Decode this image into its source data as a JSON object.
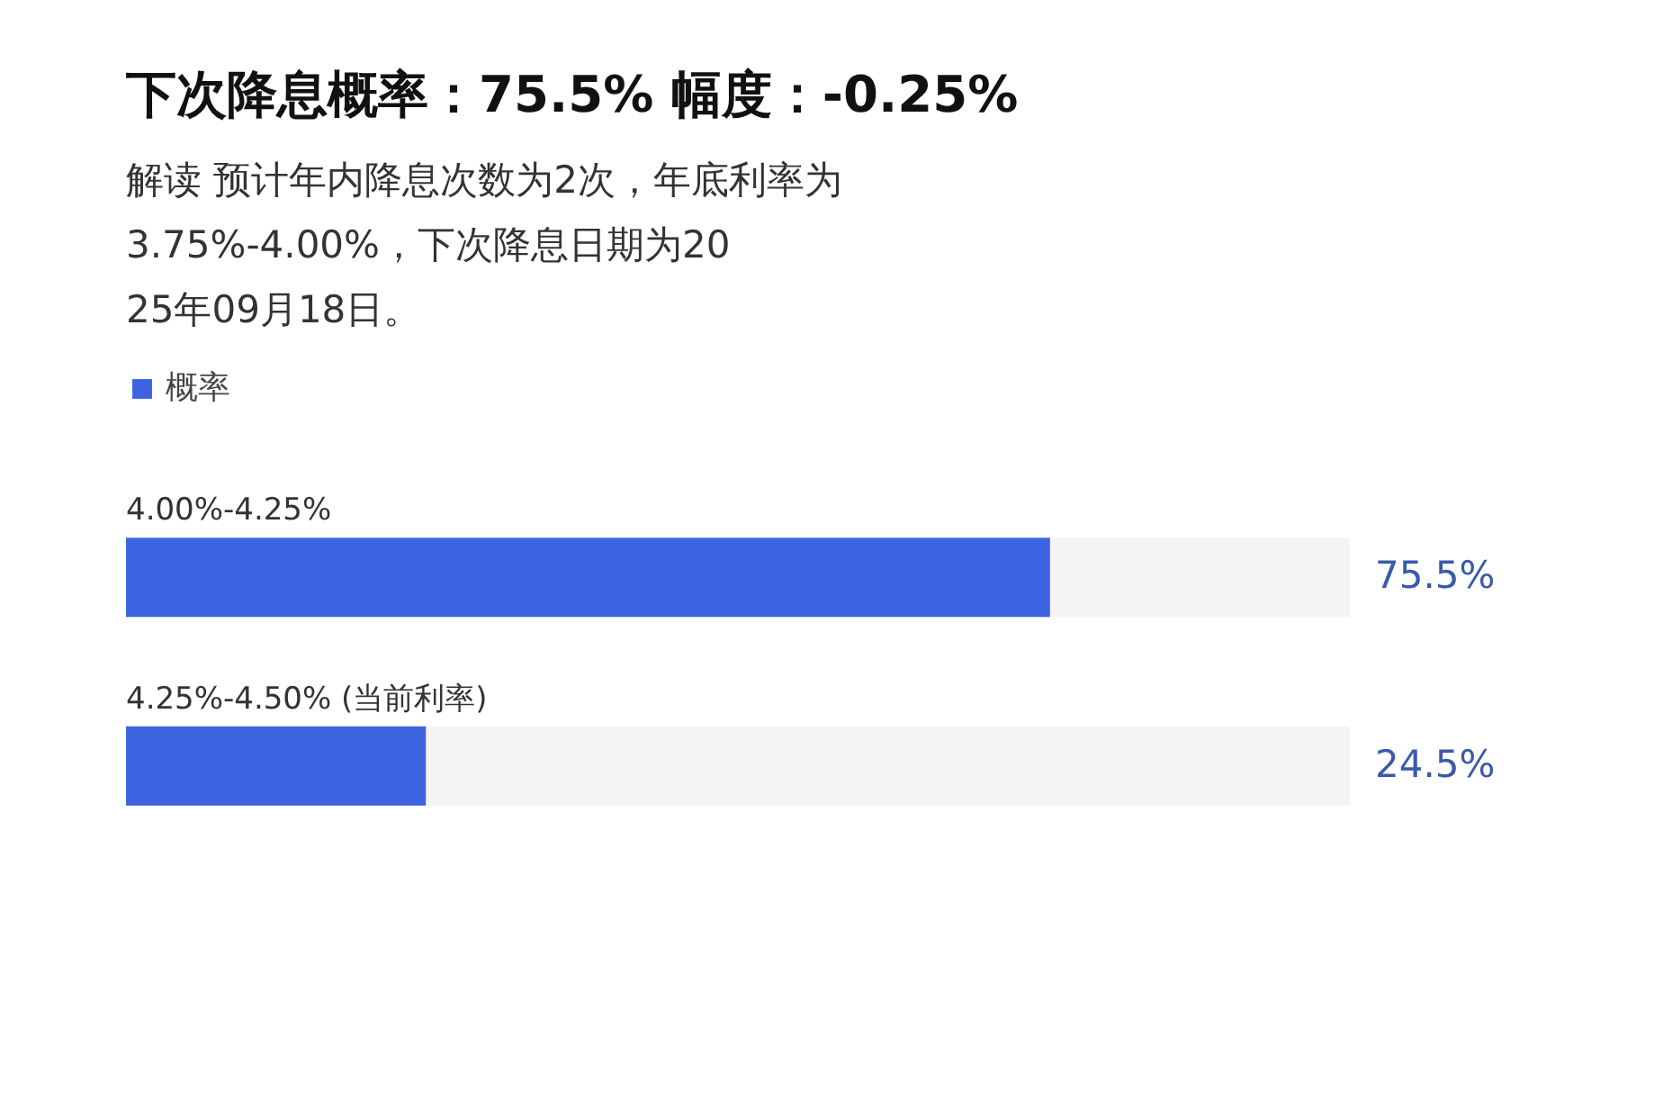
{
  "chart_data": {
    "type": "bar",
    "orientation": "horizontal",
    "title": "下次降息概率：75.5%    幅度：-0.25%",
    "annotations": [
      "解读",
      "预计年内降息次数为2次，年底利率为3.75%-4.00%，下次降息日期为2025年09月18日。"
    ],
    "categories": [
      "4.00%-4.25%",
      "4.25%-4.50% (当前利率)"
    ],
    "series": [
      {
        "name": "概率",
        "color": "#3d63e0",
        "values": [
          75.5,
          24.5
        ],
        "value_labels": [
          "75.5%",
          "24.5%"
        ]
      }
    ],
    "xlim": [
      0,
      100
    ],
    "tick_labels": false,
    "grid": false,
    "legend": "top left"
  }
}
